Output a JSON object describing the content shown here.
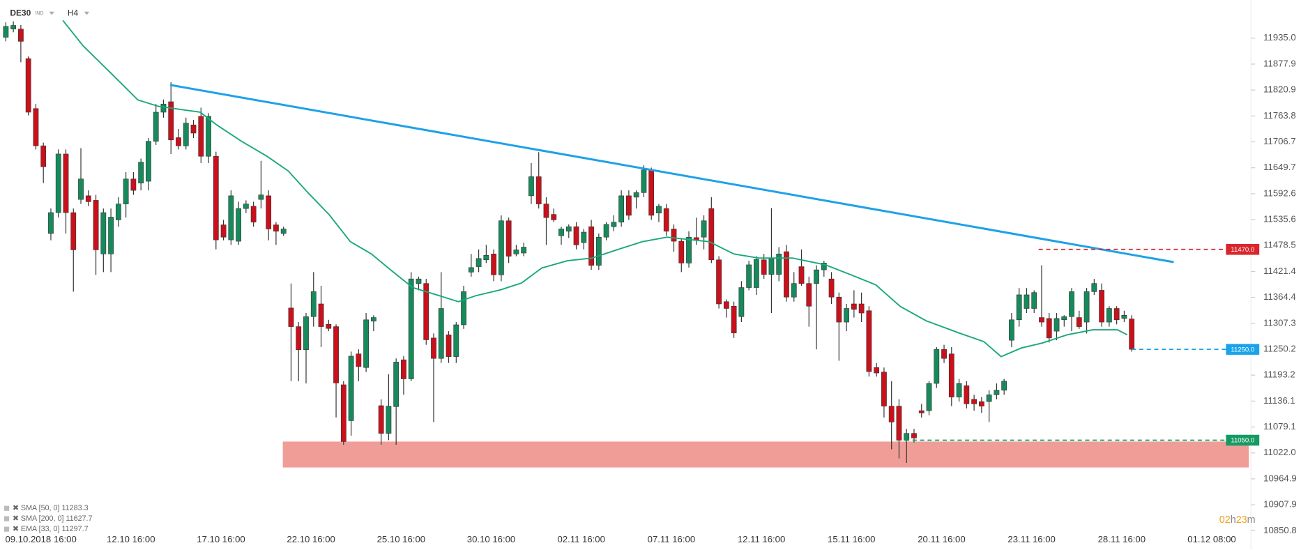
{
  "chart_data": {
    "type": "candlestick",
    "symbol": "DE30",
    "market": "IND",
    "timeframe": "H4",
    "ylim": [
      10845,
      12019
    ],
    "yticks": [
      {
        "value": 11935,
        "label": "11935.0"
      },
      11877.9,
      11820.9,
      11763.8,
      11706.7,
      11649.7,
      11592.6,
      11535.6,
      11478.5,
      11421.4,
      11364.4,
      11307.3,
      11250.2,
      11193.2,
      11136.1,
      11079.1,
      {
        "value": 11022,
        "label": "11022.0"
      },
      10964.9,
      10907.9,
      10850.8
    ],
    "xticks": [
      "09.10.2018 16:00",
      "12.10 16:00",
      "17.10 16:00",
      "22.10 16:00",
      "25.10 16:00",
      "30.10 16:00",
      "02.11 16:00",
      "07.11 16:00",
      "12.11 16:00",
      "15.11 16:00",
      "20.11 16:00",
      "23.11 16:00",
      "28.11 16:00",
      "01.12 08:00"
    ],
    "up_color": "#178a5c",
    "down_color": "#c9111b",
    "ohlc": [
      [
        11937,
        11970,
        11928,
        11961
      ],
      [
        11955,
        11972,
        11948,
        11963
      ],
      [
        11955,
        11964,
        11882,
        11928
      ],
      [
        11890,
        11895,
        11765,
        11772
      ],
      [
        11780,
        11790,
        11690,
        11698
      ],
      [
        11698,
        11705,
        11616,
        11652
      ],
      [
        11505,
        11560,
        11490,
        11551
      ],
      [
        11551,
        11690,
        11540,
        11680
      ],
      [
        11680,
        11690,
        11505,
        11551
      ],
      [
        11551,
        11560,
        11377,
        11469
      ],
      [
        11580,
        11693,
        11570,
        11625
      ],
      [
        11588,
        11600,
        11565,
        11575
      ],
      [
        11578,
        11590,
        11414,
        11469
      ],
      [
        11460,
        11560,
        11420,
        11551
      ],
      [
        11460,
        11560,
        11420,
        11541
      ],
      [
        11535,
        11585,
        11520,
        11570
      ],
      [
        11570,
        11640,
        11540,
        11625
      ],
      [
        11625,
        11640,
        11590,
        11600
      ],
      [
        11616,
        11670,
        11600,
        11662
      ],
      [
        11620,
        11715,
        11600,
        11708
      ],
      [
        11708,
        11790,
        11700,
        11772
      ],
      [
        11772,
        11800,
        11760,
        11790
      ],
      [
        11795,
        11838,
        11680,
        11711
      ],
      [
        11716,
        11735,
        11690,
        11698
      ],
      [
        11698,
        11760,
        11690,
        11748
      ],
      [
        11744,
        11755,
        11715,
        11726
      ],
      [
        11763,
        11782,
        11660,
        11675
      ],
      [
        11675,
        11770,
        11660,
        11763
      ],
      [
        11675,
        11685,
        11470,
        11491
      ],
      [
        11524,
        11535,
        11490,
        11497
      ],
      [
        11491,
        11600,
        11480,
        11588
      ],
      [
        11488,
        11575,
        11480,
        11560
      ],
      [
        11560,
        11578,
        11550,
        11570
      ],
      [
        11565,
        11575,
        11520,
        11530
      ],
      [
        11580,
        11665,
        11560,
        11590
      ],
      [
        11588,
        11600,
        11490,
        11515
      ],
      [
        11524,
        11530,
        11480,
        11510
      ],
      [
        11505,
        11520,
        11500,
        11515
      ],
      [
        11341,
        11395,
        11180,
        11300
      ],
      [
        11300,
        11310,
        11180,
        11249
      ],
      [
        11249,
        11330,
        11175,
        11322
      ],
      [
        11322,
        11420,
        11300,
        11377
      ],
      [
        11350,
        11390,
        11255,
        11300
      ],
      [
        11305,
        11315,
        11290,
        11296
      ],
      [
        11300,
        11305,
        11100,
        11176
      ],
      [
        11172,
        11180,
        11040,
        11047
      ],
      [
        11093,
        11245,
        11060,
        11235
      ],
      [
        11240,
        11250,
        11180,
        11212
      ],
      [
        11210,
        11330,
        11200,
        11315
      ],
      [
        11312,
        11325,
        11290,
        11320
      ],
      [
        11126,
        11140,
        11040,
        11065
      ],
      [
        11065,
        11195,
        11050,
        11125
      ],
      [
        11124,
        11230,
        11040,
        11222
      ],
      [
        11227,
        11235,
        11150,
        11185
      ],
      [
        11185,
        11420,
        11180,
        11405
      ],
      [
        11395,
        11410,
        11380,
        11405
      ],
      [
        11395,
        11405,
        11260,
        11271
      ],
      [
        11275,
        11285,
        11090,
        11230
      ],
      [
        11230,
        11420,
        11220,
        11340
      ],
      [
        11282,
        11290,
        11220,
        11234
      ],
      [
        11234,
        11310,
        11220,
        11304
      ],
      [
        11304,
        11390,
        11295,
        11377
      ],
      [
        11420,
        11460,
        11410,
        11430
      ],
      [
        11432,
        11470,
        11420,
        11450
      ],
      [
        11447,
        11480,
        11440,
        11457
      ],
      [
        11460,
        11470,
        11400,
        11414
      ],
      [
        11414,
        11545,
        11400,
        11533
      ],
      [
        11533,
        11540,
        11440,
        11455
      ],
      [
        11460,
        11480,
        11455,
        11469
      ],
      [
        11462,
        11485,
        11455,
        11475
      ],
      [
        11588,
        11660,
        11570,
        11630
      ],
      [
        11630,
        11684,
        11560,
        11570
      ],
      [
        11570,
        11585,
        11480,
        11540
      ],
      [
        11547,
        11560,
        11530,
        11535
      ],
      [
        11500,
        11520,
        11480,
        11515
      ],
      [
        11510,
        11525,
        11495,
        11520
      ],
      [
        11520,
        11530,
        11470,
        11480
      ],
      [
        11485,
        11515,
        11470,
        11508
      ],
      [
        11520,
        11535,
        11425,
        11435
      ],
      [
        11435,
        11505,
        11425,
        11497
      ],
      [
        11497,
        11530,
        11490,
        11525
      ],
      [
        11520,
        11545,
        11510,
        11530
      ],
      [
        11530,
        11600,
        11520,
        11588
      ],
      [
        11588,
        11600,
        11535,
        11545
      ],
      [
        11585,
        11600,
        11560,
        11595
      ],
      [
        11595,
        11655,
        11585,
        11645
      ],
      [
        11645,
        11650,
        11535,
        11545
      ],
      [
        11550,
        11570,
        11530,
        11565
      ],
      [
        11560,
        11570,
        11500,
        11510
      ],
      [
        11515,
        11525,
        11465,
        11488
      ],
      [
        11488,
        11495,
        11420,
        11440
      ],
      [
        11440,
        11510,
        11430,
        11497
      ],
      [
        11496,
        11540,
        11480,
        11490
      ],
      [
        11497,
        11545,
        11470,
        11533
      ],
      [
        11560,
        11585,
        11440,
        11447
      ],
      [
        11447,
        11455,
        11340,
        11350
      ],
      [
        11355,
        11360,
        11320,
        11340
      ],
      [
        11345,
        11355,
        11275,
        11286
      ],
      [
        11322,
        11400,
        11310,
        11386
      ],
      [
        11386,
        11445,
        11380,
        11436
      ],
      [
        11386,
        11455,
        11370,
        11448
      ],
      [
        11447,
        11460,
        11405,
        11415
      ],
      [
        11415,
        11561,
        11330,
        11450
      ],
      [
        11415,
        11475,
        11400,
        11460
      ],
      [
        11465,
        11480,
        11355,
        11365
      ],
      [
        11365,
        11420,
        11355,
        11395
      ],
      [
        11432,
        11470,
        11390,
        11395
      ],
      [
        11395,
        11410,
        11300,
        11345
      ],
      [
        11395,
        11435,
        11250,
        11425
      ],
      [
        11425,
        11445,
        11410,
        11440
      ],
      [
        11405,
        11420,
        11350,
        11365
      ],
      [
        11365,
        11375,
        11225,
        11310
      ],
      [
        11310,
        11350,
        11290,
        11340
      ],
      [
        11350,
        11380,
        11320,
        11338
      ],
      [
        11350,
        11375,
        11310,
        11330
      ],
      [
        11335,
        11345,
        11190,
        11201
      ],
      [
        11210,
        11220,
        11190,
        11198
      ],
      [
        11200,
        11210,
        11100,
        11125
      ],
      [
        11125,
        11180,
        11030,
        11090
      ],
      [
        11125,
        11140,
        11010,
        11050
      ],
      [
        11050,
        11075,
        11000,
        11065
      ],
      [
        11065,
        11075,
        11045,
        11055
      ],
      [
        11115,
        11130,
        11100,
        11110
      ],
      [
        11115,
        11180,
        11105,
        11175
      ],
      [
        11175,
        11255,
        11165,
        11250
      ],
      [
        11250,
        11260,
        11220,
        11230
      ],
      [
        11240,
        11255,
        11125,
        11145
      ],
      [
        11145,
        11185,
        11135,
        11175
      ],
      [
        11170,
        11180,
        11120,
        11130
      ],
      [
        11140,
        11150,
        11115,
        11130
      ],
      [
        11135,
        11145,
        11110,
        11125
      ],
      [
        11135,
        11160,
        11090,
        11150
      ],
      [
        11150,
        11175,
        11140,
        11160
      ],
      [
        11160,
        11185,
        11150,
        11180
      ],
      [
        11270,
        11330,
        11255,
        11315
      ],
      [
        11315,
        11385,
        11300,
        11370
      ],
      [
        11340,
        11385,
        11330,
        11370
      ],
      [
        11340,
        11380,
        11330,
        11375
      ],
      [
        11320,
        11435,
        11300,
        11310
      ],
      [
        11318,
        11330,
        11265,
        11275
      ],
      [
        11290,
        11330,
        11270,
        11318
      ],
      [
        11315,
        11325,
        11300,
        11322
      ],
      [
        11322,
        11385,
        11290,
        11377
      ],
      [
        11320,
        11335,
        11295,
        11300
      ],
      [
        11310,
        11385,
        11285,
        11377
      ],
      [
        11377,
        11405,
        11370,
        11395
      ],
      [
        11380,
        11395,
        11300,
        11310
      ],
      [
        11310,
        11345,
        11300,
        11340
      ],
      [
        11340,
        11345,
        11305,
        11315
      ],
      [
        11318,
        11335,
        11310,
        11325
      ],
      [
        11317,
        11325,
        11245,
        11250
      ]
    ],
    "moving_average": {
      "color": "#1aa97a",
      "x": [
        7.6,
        10.3,
        13.7,
        17.6,
        20.3,
        25.9,
        28.1,
        31.4,
        34.8,
        37.6,
        40.3,
        43.1,
        45.9,
        48.7,
        51.4,
        54.2,
        57,
        60.3,
        62.6,
        65.9,
        68.7,
        71.4,
        74.8,
        78.1,
        81.4,
        84.8,
        88.1,
        91.4,
        93.7,
        97,
        100.3,
        104.8,
        109.2,
        112.6,
        115.9,
        119.2,
        122.6,
        127,
        130.3,
        132.6,
        135.3,
        138.1,
        141.4,
        144.8,
        148.1,
        149.4
      ],
      "values": [
        11974,
        11918,
        11863,
        11799,
        11785,
        11772,
        11744,
        11708,
        11675,
        11643,
        11594,
        11546,
        11487,
        11460,
        11423,
        11386,
        11372,
        11355,
        11368,
        11381,
        11396,
        11429,
        11445,
        11451,
        11469,
        11487,
        11497,
        11491,
        11487,
        11460,
        11451,
        11451,
        11436,
        11414,
        11392,
        11344,
        11313,
        11286,
        11267,
        11234,
        11253,
        11264,
        11282,
        11293,
        11293,
        11282
      ]
    },
    "trendline": {
      "color": "#1ea1e8",
      "x": [
        21.9,
        155.6
      ],
      "values": [
        11832,
        11442
      ]
    },
    "zone": {
      "color": "#f09d98",
      "x": [
        36.9,
        165.6
      ],
      "values": [
        11047,
        10990
      ]
    },
    "levels": [
      {
        "value": 11470,
        "label": "11470.0",
        "color": "#d9262c",
        "from": 137.6
      },
      {
        "value": 11250,
        "label": "11250.0",
        "color": "#1aa3ea",
        "from": 150
      },
      {
        "value": 11050,
        "label": "11050.0",
        "color": "#169a63",
        "from": 119.8
      }
    ],
    "indicators": [
      "SMA [50, 0] 11283.3",
      "SMA [200, 0] 11627.7",
      "EMA [33, 0] 11297.7"
    ],
    "timer": [
      "02",
      "h",
      "23",
      "m"
    ]
  }
}
